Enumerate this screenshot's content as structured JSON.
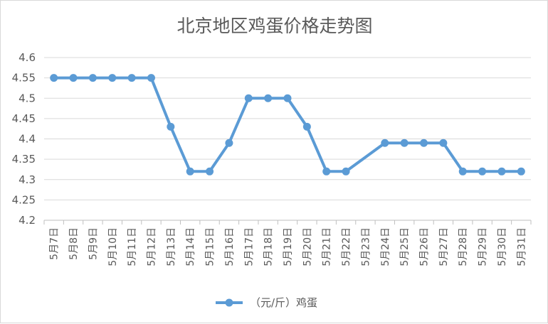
{
  "chart_data": {
    "type": "line",
    "title": "北京地区鸡蛋价格走势图",
    "xlabel": "",
    "ylabel": "",
    "ylim": [
      4.2,
      4.6
    ],
    "yticks": [
      "4.2",
      "4.25",
      "4.3",
      "4.35",
      "4.4",
      "4.45",
      "4.5",
      "4.55",
      "4.6"
    ],
    "grid": true,
    "legend_position": "bottom",
    "categories": [
      "5月7日",
      "5月8日",
      "5月9日",
      "5月10日",
      "5月11日",
      "5月12日",
      "5月13日",
      "5月14日",
      "5月15日",
      "5月16日",
      "5月17日",
      "5月18日",
      "5月19日",
      "5月20日",
      "5月21日",
      "5月22日",
      "5月23日",
      "5月24日",
      "5月25日",
      "5月26日",
      "5月27日",
      "5月28日",
      "5月29日",
      "5月30日",
      "5月31日"
    ],
    "series": [
      {
        "name": "（元/斤）鸡蛋",
        "color": "#5b9bd5",
        "values": [
          4.55,
          4.55,
          4.55,
          4.55,
          4.55,
          4.55,
          4.43,
          4.32,
          4.32,
          4.39,
          4.5,
          4.5,
          4.5,
          4.43,
          4.32,
          4.32,
          null,
          4.39,
          4.39,
          4.39,
          4.39,
          4.32,
          4.32,
          4.32,
          4.32
        ]
      }
    ]
  }
}
